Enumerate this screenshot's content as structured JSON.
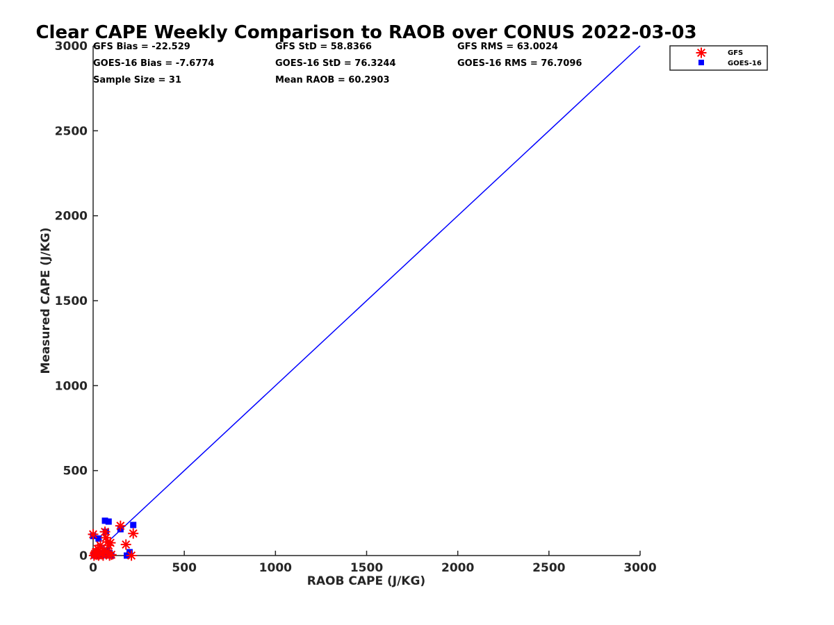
{
  "chart_data": {
    "type": "scatter",
    "title": "Clear CAPE Weekly Comparison to RAOB over CONUS 2022-03-03",
    "xlabel": "RAOB CAPE (J/KG)",
    "ylabel": "Measured CAPE (J/KG)",
    "xlim": [
      0,
      3000
    ],
    "ylim": [
      0,
      3000
    ],
    "xticks": [
      0,
      500,
      1000,
      1500,
      2000,
      2500,
      3000
    ],
    "yticks": [
      0,
      500,
      1000,
      1500,
      2000,
      2500,
      3000
    ],
    "grid": false,
    "legend_position": "top-right",
    "reference_line": {
      "x": [
        0,
        3000
      ],
      "y": [
        0,
        3000
      ],
      "color": "#0000ff"
    },
    "series": [
      {
        "name": "GFS",
        "marker": "asterisk",
        "color": "#ff0000",
        "points": [
          [
            0,
            125
          ],
          [
            5,
            0
          ],
          [
            10,
            10
          ],
          [
            15,
            20
          ],
          [
            20,
            5
          ],
          [
            25,
            40
          ],
          [
            30,
            0
          ],
          [
            40,
            60
          ],
          [
            50,
            10
          ],
          [
            55,
            0
          ],
          [
            60,
            30
          ],
          [
            65,
            140
          ],
          [
            70,
            105
          ],
          [
            75,
            20
          ],
          [
            80,
            80
          ],
          [
            85,
            60
          ],
          [
            90,
            0
          ],
          [
            95,
            75
          ],
          [
            100,
            5
          ],
          [
            150,
            175
          ],
          [
            180,
            65
          ],
          [
            210,
            0
          ],
          [
            220,
            130
          ]
        ]
      },
      {
        "name": "GOES-16",
        "marker": "square",
        "color": "#0000ff",
        "points": [
          [
            0,
            115
          ],
          [
            5,
            5
          ],
          [
            10,
            0
          ],
          [
            15,
            10
          ],
          [
            20,
            0
          ],
          [
            25,
            20
          ],
          [
            30,
            100
          ],
          [
            35,
            10
          ],
          [
            45,
            0
          ],
          [
            50,
            5
          ],
          [
            65,
            205
          ],
          [
            70,
            140
          ],
          [
            75,
            30
          ],
          [
            80,
            5
          ],
          [
            85,
            200
          ],
          [
            90,
            15
          ],
          [
            100,
            0
          ],
          [
            150,
            155
          ],
          [
            185,
            0
          ],
          [
            200,
            20
          ],
          [
            220,
            180
          ]
        ]
      }
    ],
    "stats": [
      "GFS Bias = -22.529",
      "GOES-16 Bias = -7.6774",
      "Sample Size = 31",
      "GFS StD = 58.8366",
      "GOES-16 StD = 76.3244",
      "Mean RAOB = 60.2903",
      "GFS RMS = 63.0024",
      "GOES-16 RMS = 76.7096"
    ]
  }
}
